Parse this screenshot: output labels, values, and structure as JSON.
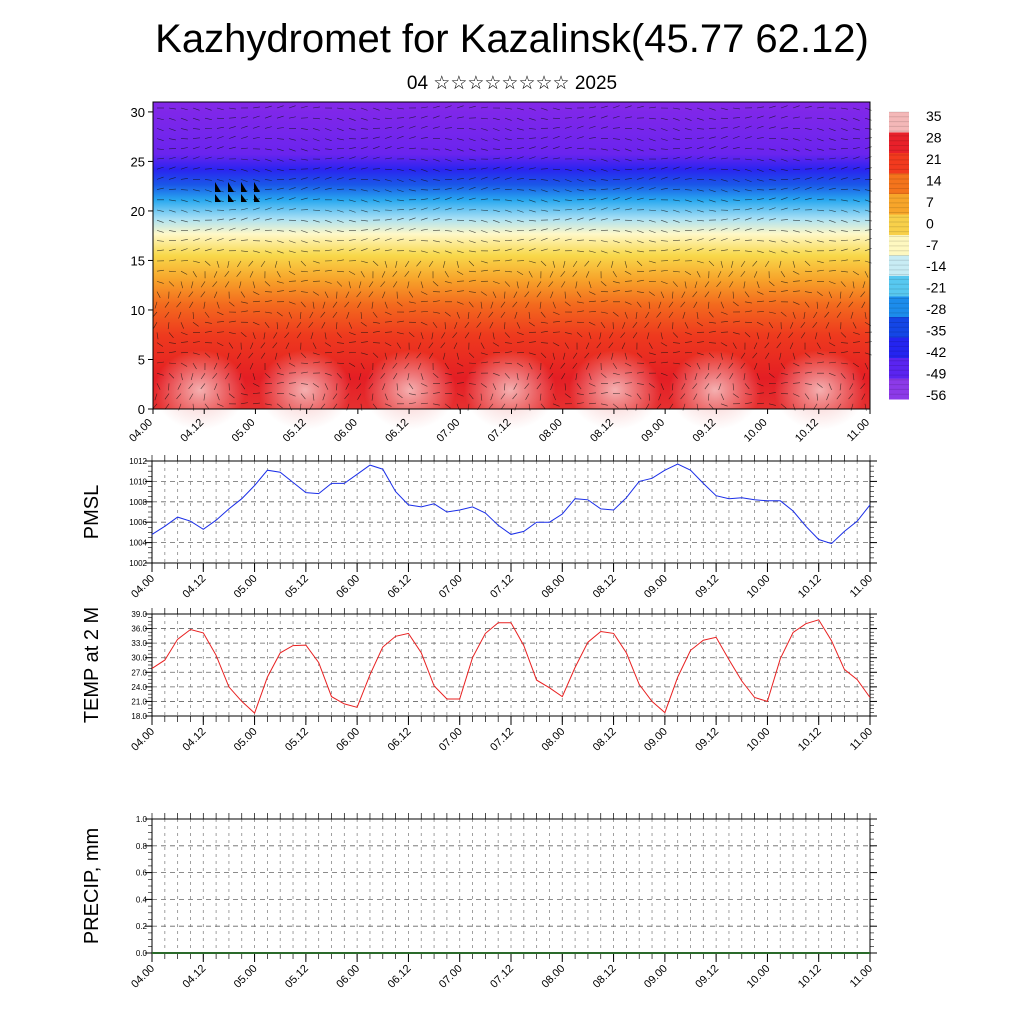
{
  "header": {
    "title": "Kazhydromet for Kazalinsk(45.77 62.12)",
    "subtitle": "04 ☆☆☆☆☆☆☆☆ 2025"
  },
  "chart_data": [
    {
      "type": "heatmap",
      "title": "",
      "ylim": [
        0,
        31
      ],
      "y_ticks": [
        0,
        5,
        10,
        15,
        20,
        25,
        30
      ],
      "x_ticks": [
        "04.00",
        "04.12",
        "05.00",
        "05.12",
        "06.00",
        "06.12",
        "07.00",
        "07.12",
        "08.00",
        "08.12",
        "09.00",
        "09.12",
        "10.00",
        "10.12",
        "11.00"
      ],
      "colorbar_labels": [
        "35",
        "28",
        "21",
        "14",
        "7",
        "0",
        "-7",
        "-14",
        "-21",
        "-28",
        "-35",
        "-42",
        "-49",
        "-56"
      ],
      "colorbar_colors": [
        "#f4b8b8",
        "#e8202a",
        "#f23a1e",
        "#f4741c",
        "#f7a52a",
        "#f8d04a",
        "#fef8c0",
        "#c8ecf4",
        "#58c8f0",
        "#1c8cec",
        "#1446e6",
        "#2424f0",
        "#5a24f0",
        "#8c3ae8"
      ],
      "overlay": "wind barbs",
      "grid": false
    },
    {
      "type": "line",
      "ylabel": "PMSL",
      "ylim": [
        1002,
        1012
      ],
      "y_ticks": [
        1002,
        1004,
        1006,
        1008,
        1010,
        1012
      ],
      "x_ticks": [
        "04.00",
        "04.12",
        "05.00",
        "05.12",
        "06.00",
        "06.12",
        "07.00",
        "07.12",
        "08.00",
        "08.12",
        "09.00",
        "09.12",
        "10.00",
        "10.12",
        "11.00"
      ],
      "grid": true,
      "color": "#1a2ee8",
      "values": [
        1004.8,
        1005.6,
        1006.5,
        1006.1,
        1005.3,
        1006.2,
        1007.3,
        1008.3,
        1009.6,
        1011.1,
        1010.9,
        1009.9,
        1008.9,
        1008.8,
        1009.8,
        1009.8,
        1010.7,
        1011.6,
        1011.2,
        1009.0,
        1007.7,
        1007.5,
        1007.8,
        1007.0,
        1007.2,
        1007.5,
        1006.9,
        1005.7,
        1004.8,
        1005.1,
        1006.0,
        1006.0,
        1006.8,
        1008.3,
        1008.2,
        1007.3,
        1007.2,
        1008.4,
        1010.0,
        1010.3,
        1011.1,
        1011.7,
        1011.1,
        1009.8,
        1008.6,
        1008.3,
        1008.4,
        1008.2,
        1008.1,
        1008.1,
        1007.1,
        1005.6,
        1004.3,
        1003.9,
        1005.1,
        1006.1,
        1007.7
      ]
    },
    {
      "type": "line",
      "ylabel": "TEMP at 2 M",
      "ylim": [
        18,
        39
      ],
      "y_ticks": [
        "18.0",
        "21.0",
        "24.0",
        "27.0",
        "30.0",
        "33.0",
        "36.0",
        "39.0"
      ],
      "x_ticks": [
        "04.00",
        "04.12",
        "05.00",
        "05.12",
        "06.00",
        "06.12",
        "07.00",
        "07.12",
        "08.00",
        "08.12",
        "09.00",
        "09.12",
        "10.00",
        "10.12",
        "11.00"
      ],
      "grid": true,
      "color": "#e82020",
      "values": [
        27.8,
        29.5,
        33.8,
        35.8,
        35.1,
        30.5,
        24.0,
        21.0,
        18.6,
        26.0,
        31.0,
        32.5,
        32.6,
        29.0,
        22.0,
        20.5,
        19.8,
        26.5,
        32.2,
        34.4,
        35.0,
        31.0,
        24.2,
        21.5,
        21.5,
        30.0,
        35.0,
        37.2,
        37.2,
        32.5,
        25.4,
        23.8,
        22.0,
        28.0,
        33.2,
        35.4,
        35.0,
        31.0,
        24.5,
        21.0,
        18.7,
        26.0,
        31.5,
        33.6,
        34.2,
        29.6,
        25.2,
        21.8,
        21.0,
        29.8,
        35.2,
        37.0,
        37.8,
        33.5,
        27.6,
        25.5,
        21.8
      ]
    },
    {
      "type": "bar",
      "ylabel": "PRECIP, mm",
      "ylim": [
        0.0,
        1.0
      ],
      "y_ticks": [
        "0.0",
        "0.2",
        "0.4",
        "0.6",
        "0.8",
        "1.0"
      ],
      "x_ticks": [
        "04.00",
        "04.12",
        "05.00",
        "05.12",
        "06.00",
        "06.12",
        "07.00",
        "07.12",
        "08.00",
        "08.12",
        "09.00",
        "09.12",
        "10.00",
        "10.12",
        "11.00"
      ],
      "grid": true,
      "color": "#2a6a2a",
      "values": [
        0,
        0,
        0,
        0,
        0,
        0,
        0,
        0,
        0,
        0,
        0,
        0,
        0,
        0,
        0,
        0,
        0,
        0,
        0,
        0,
        0,
        0,
        0,
        0,
        0,
        0,
        0,
        0,
        0,
        0,
        0,
        0,
        0,
        0,
        0,
        0,
        0,
        0,
        0,
        0,
        0,
        0,
        0,
        0,
        0,
        0,
        0,
        0,
        0,
        0,
        0,
        0,
        0,
        0,
        0,
        0,
        0
      ]
    }
  ]
}
